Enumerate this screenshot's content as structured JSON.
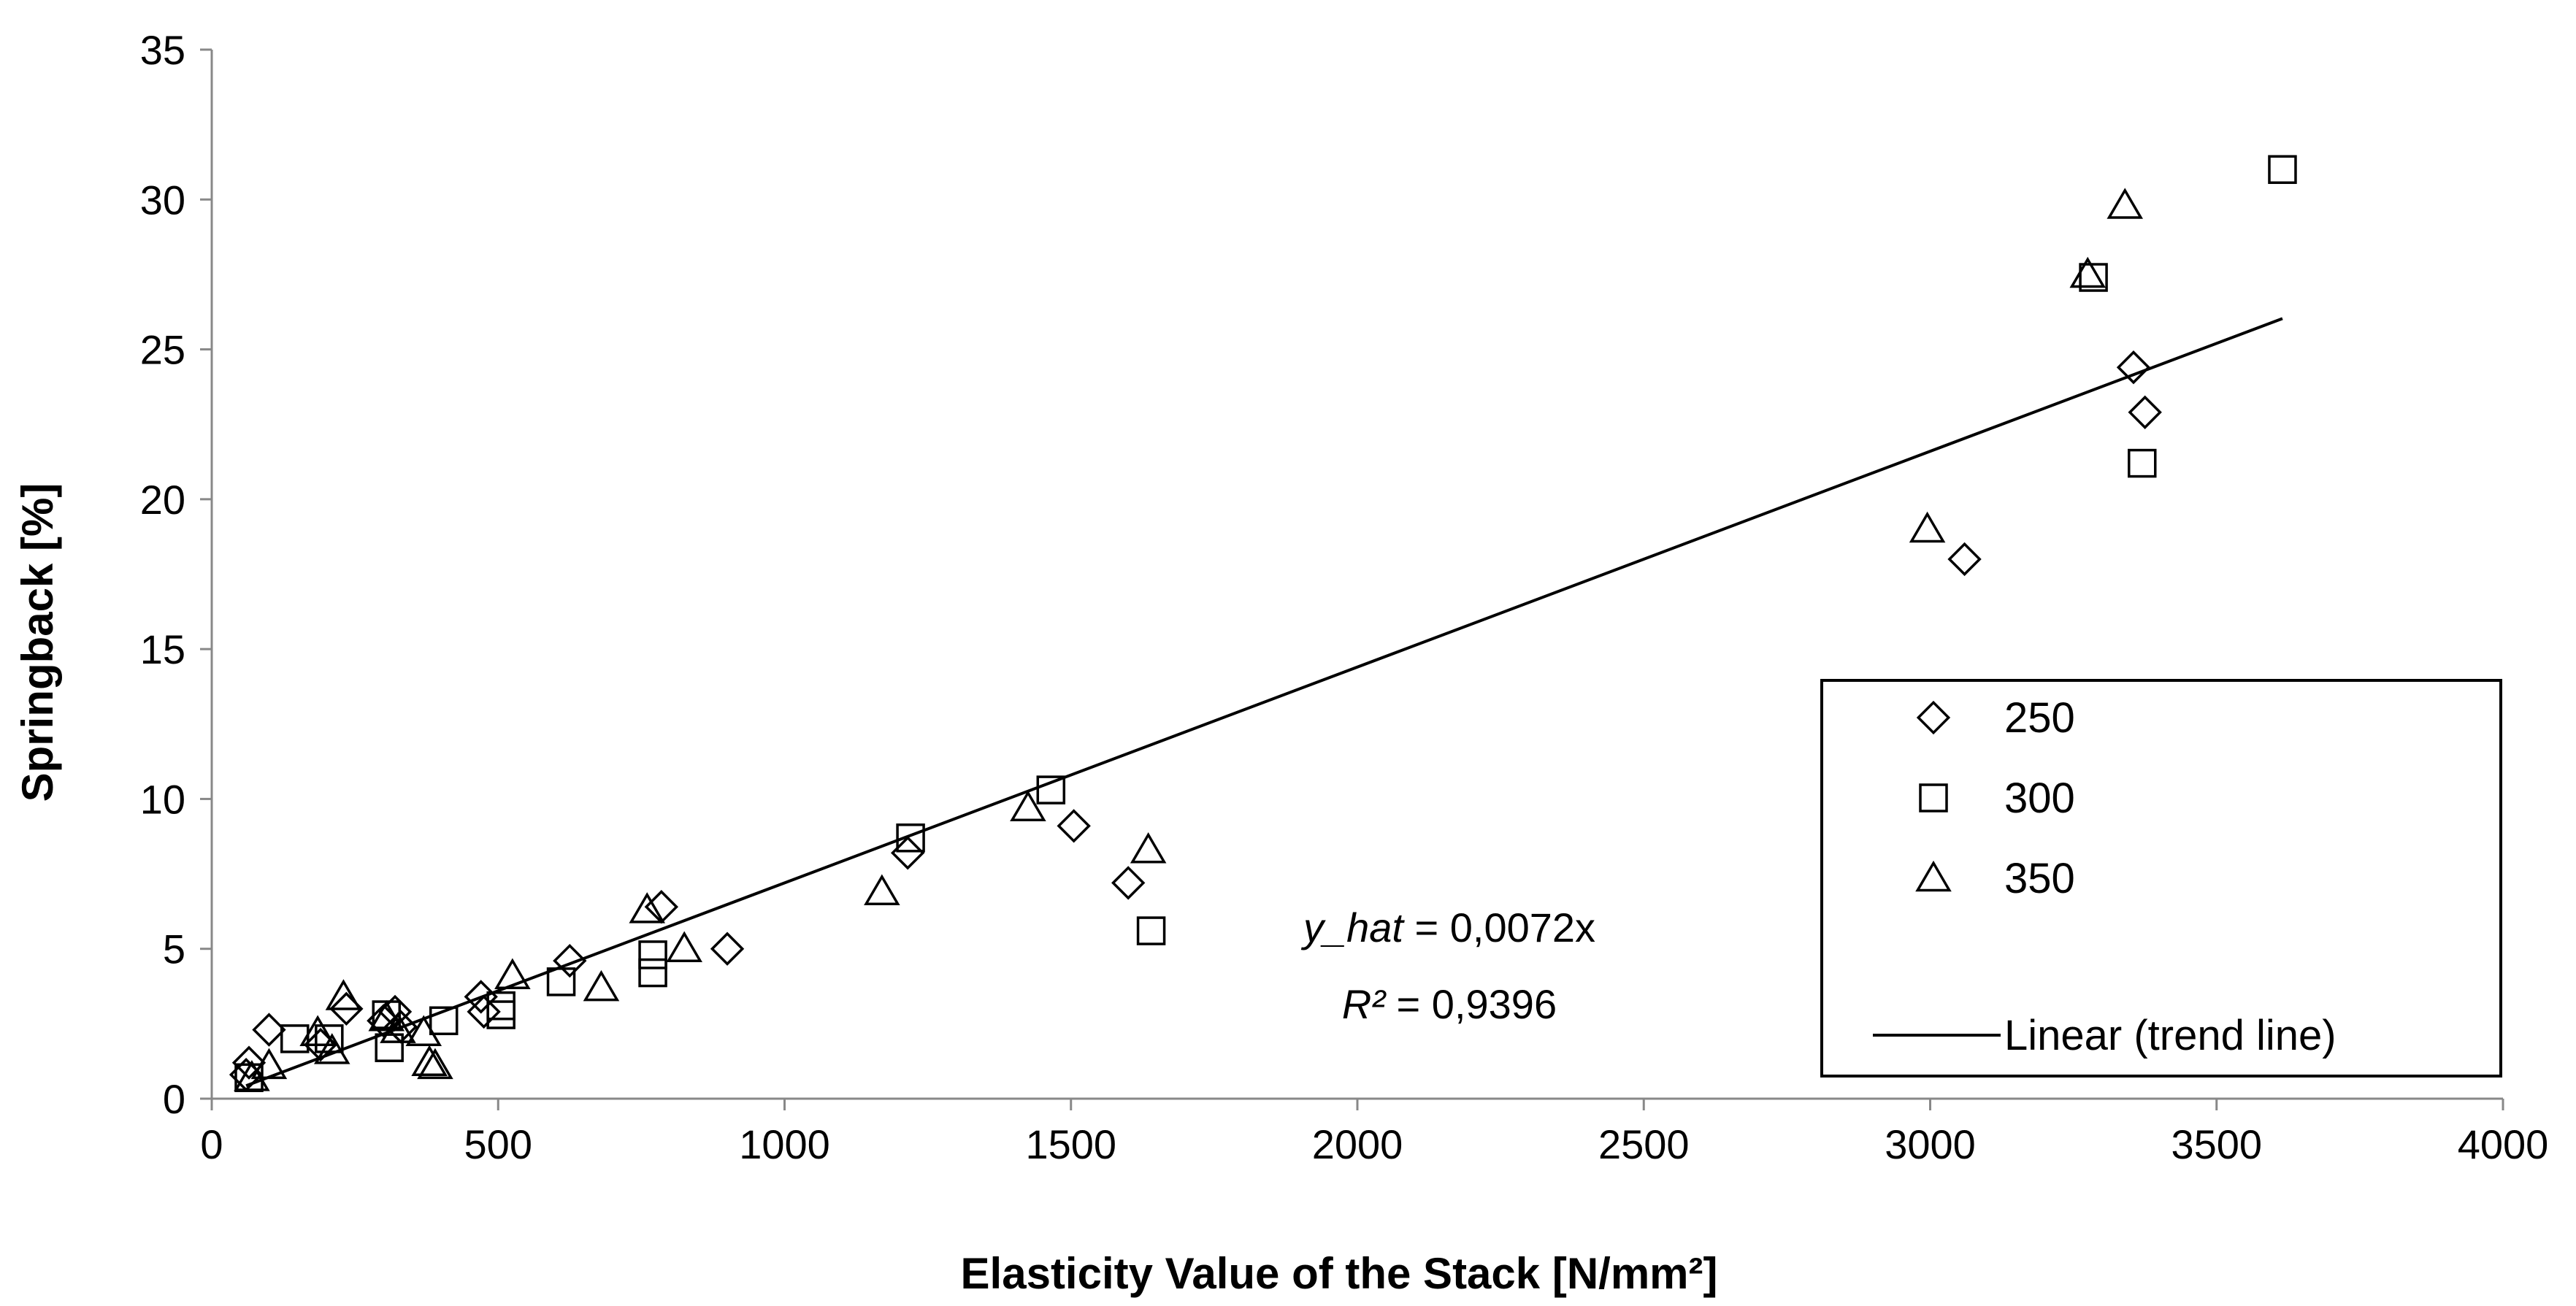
{
  "chart_data": {
    "type": "scatter",
    "xlabel": "Elasticity Value of the Stack [N/mm²]",
    "ylabel": "Springback [%]",
    "xlim": [
      0,
      4000
    ],
    "ylim": [
      0,
      35
    ],
    "x_ticks": [
      "0",
      "500",
      "1000",
      "1500",
      "2000",
      "2500",
      "3000",
      "3500",
      "4000"
    ],
    "y_ticks": [
      "0",
      "5",
      "10",
      "15",
      "20",
      "25",
      "30",
      "35"
    ],
    "grid": false,
    "legend_position": "bottom-right",
    "series": [
      {
        "name": "250",
        "marker": "diamond",
        "points": [
          [
            60,
            0.8
          ],
          [
            65,
            1.2
          ],
          [
            100,
            2.3
          ],
          [
            190,
            1.8
          ],
          [
            235,
            3.0
          ],
          [
            300,
            2.6
          ],
          [
            320,
            2.9
          ],
          [
            330,
            2.4
          ],
          [
            470,
            3.4
          ],
          [
            475,
            2.9
          ],
          [
            625,
            4.6
          ],
          [
            785,
            6.4
          ],
          [
            900,
            5.0
          ],
          [
            1215,
            8.2
          ],
          [
            1505,
            9.1
          ],
          [
            1600,
            7.2
          ],
          [
            3060,
            18.0
          ],
          [
            3355,
            24.4
          ],
          [
            3375,
            22.9
          ]
        ]
      },
      {
        "name": "300",
        "marker": "square",
        "points": [
          [
            65,
            0.7
          ],
          [
            145,
            2.0
          ],
          [
            205,
            2.0
          ],
          [
            305,
            2.8
          ],
          [
            310,
            1.7
          ],
          [
            405,
            2.6
          ],
          [
            505,
            3.1
          ],
          [
            505,
            2.8
          ],
          [
            610,
            3.9
          ],
          [
            770,
            4.8
          ],
          [
            770,
            4.2
          ],
          [
            1220,
            8.7
          ],
          [
            1465,
            10.3
          ],
          [
            1640,
            5.6
          ],
          [
            3285,
            27.4
          ],
          [
            3370,
            21.2
          ],
          [
            3615,
            31.0
          ]
        ]
      },
      {
        "name": "350",
        "marker": "triangle",
        "points": [
          [
            70,
            0.7
          ],
          [
            100,
            1.1
          ],
          [
            185,
            2.2
          ],
          [
            210,
            1.6
          ],
          [
            230,
            3.4
          ],
          [
            305,
            2.7
          ],
          [
            325,
            2.3
          ],
          [
            370,
            2.2
          ],
          [
            380,
            1.2
          ],
          [
            390,
            1.1
          ],
          [
            525,
            4.1
          ],
          [
            680,
            3.7
          ],
          [
            760,
            6.3
          ],
          [
            825,
            5.0
          ],
          [
            1170,
            6.9
          ],
          [
            1425,
            9.7
          ],
          [
            1635,
            8.3
          ],
          [
            2995,
            19.0
          ],
          [
            3275,
            27.5
          ],
          [
            3340,
            29.8
          ]
        ]
      }
    ],
    "trend_line": {
      "name": "Linear (trend line)",
      "x_range": [
        60,
        3615
      ]
    },
    "annotation": {
      "equation_var": "y_hat",
      "equation_rest": " = 0,0072x",
      "r2_label": "R²",
      "r2_rest": " = 0,9396"
    }
  }
}
